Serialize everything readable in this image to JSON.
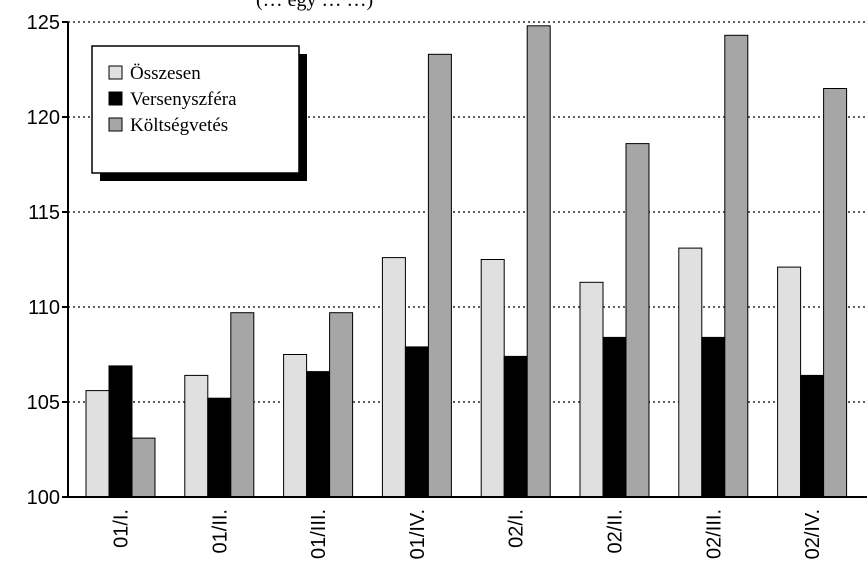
{
  "chart_data": {
    "type": "bar",
    "title": "(… egy … …)",
    "xlabel": "",
    "ylabel": "",
    "ylim": [
      100,
      125
    ],
    "yticks": [
      100,
      105,
      110,
      115,
      120,
      125
    ],
    "grid": "dotted horizontal",
    "legend_position": "top-left",
    "categories": [
      "01/I.",
      "01/II.",
      "01/III.",
      "01/IV.",
      "02/I.",
      "02/II.",
      "02/III.",
      "02/IV."
    ],
    "series": [
      {
        "name": "Összesen",
        "color": "#e0e0e0",
        "values": [
          105.6,
          106.4,
          107.5,
          112.6,
          112.5,
          111.3,
          113.1,
          112.1
        ]
      },
      {
        "name": "Versenyszféra",
        "color": "#000000",
        "values": [
          106.9,
          105.2,
          106.6,
          107.9,
          107.4,
          108.4,
          108.4,
          106.4
        ]
      },
      {
        "name": "Költségvetés",
        "color": "#a6a6a6",
        "values": [
          103.1,
          109.7,
          109.7,
          123.3,
          124.8,
          118.6,
          124.3,
          121.5
        ]
      }
    ]
  }
}
